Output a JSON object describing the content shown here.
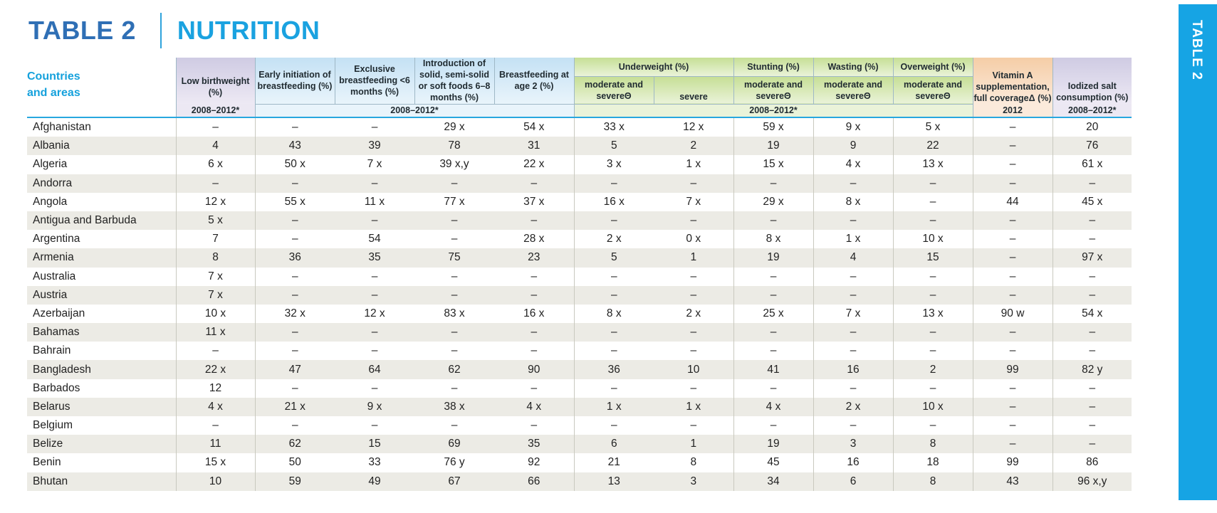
{
  "title": {
    "prefix": "TABLE 2",
    "name": "NUTRITION"
  },
  "side_tab": "TABLE 2",
  "header": {
    "countries_line1": "Countries",
    "countries_line2": "and areas",
    "low_birthweight": "Low birthweight (%)",
    "early_initiation": "Early initiation of breastfeeding (%)",
    "exclusive": "Exclusive breastfeeding <6 months (%)",
    "introduction": "Introduction of solid, semi-solid or soft foods 6–8 months (%)",
    "breastfeeding_age2": "Breastfeeding at age 2 (%)",
    "underweight": "Underweight (%)",
    "stunting": "Stunting (%)",
    "wasting": "Wasting (%)",
    "overweight": "Overweight (%)",
    "vitamin_a": "Vitamin A supplementation, full coverageΔ (%)",
    "iodized_salt": "Iodized salt consumption (%)",
    "moderate_severe": "moderate and severeΘ",
    "severe": "severe",
    "year_low_birthweight": "2008–2012*",
    "year_breastfeeding": "2008–2012*",
    "year_anthropometry": "2008–2012*",
    "year_vitamin_a": "2012",
    "year_iodized": "2008–2012*"
  },
  "rows": [
    [
      "Afghanistan",
      "–",
      "–",
      "–",
      "29 x",
      "54 x",
      "33 x",
      "12 x",
      "59 x",
      "9 x",
      "5 x",
      "–",
      "20"
    ],
    [
      "Albania",
      "4",
      "43",
      "39",
      "78",
      "31",
      "5",
      "2",
      "19",
      "9",
      "22",
      "–",
      "76"
    ],
    [
      "Algeria",
      "6 x",
      "50 x",
      "7 x",
      "39 x,y",
      "22 x",
      "3 x",
      "1 x",
      "15 x",
      "4 x",
      "13 x",
      "–",
      "61 x"
    ],
    [
      "Andorra",
      "–",
      "–",
      "–",
      "–",
      "–",
      "–",
      "–",
      "–",
      "–",
      "–",
      "–",
      "–"
    ],
    [
      "Angola",
      "12 x",
      "55 x",
      "11 x",
      "77 x",
      "37 x",
      "16 x",
      "7 x",
      "29 x",
      "8 x",
      "–",
      "44",
      "45 x"
    ],
    [
      "Antigua and Barbuda",
      "5 x",
      "–",
      "–",
      "–",
      "–",
      "–",
      "–",
      "–",
      "–",
      "–",
      "–",
      "–"
    ],
    [
      "Argentina",
      "7",
      "–",
      "54",
      "–",
      "28 x",
      "2 x",
      "0 x",
      "8 x",
      "1 x",
      "10 x",
      "–",
      "–"
    ],
    [
      "Armenia",
      "8",
      "36",
      "35",
      "75",
      "23",
      "5",
      "1",
      "19",
      "4",
      "15",
      "–",
      "97 x"
    ],
    [
      "Australia",
      "7 x",
      "–",
      "–",
      "–",
      "–",
      "–",
      "–",
      "–",
      "–",
      "–",
      "–",
      "–"
    ],
    [
      "Austria",
      "7 x",
      "–",
      "–",
      "–",
      "–",
      "–",
      "–",
      "–",
      "–",
      "–",
      "–",
      "–"
    ],
    [
      "Azerbaijan",
      "10 x",
      "32 x",
      "12 x",
      "83 x",
      "16 x",
      "8 x",
      "2 x",
      "25 x",
      "7 x",
      "13 x",
      "90 w",
      "54 x"
    ],
    [
      "Bahamas",
      "11 x",
      "–",
      "–",
      "–",
      "–",
      "–",
      "–",
      "–",
      "–",
      "–",
      "–",
      "–"
    ],
    [
      "Bahrain",
      "–",
      "–",
      "–",
      "–",
      "–",
      "–",
      "–",
      "–",
      "–",
      "–",
      "–",
      "–"
    ],
    [
      "Bangladesh",
      "22 x",
      "47",
      "64",
      "62",
      "90",
      "36",
      "10",
      "41",
      "16",
      "2",
      "99",
      "82 y"
    ],
    [
      "Barbados",
      "12",
      "–",
      "–",
      "–",
      "–",
      "–",
      "–",
      "–",
      "–",
      "–",
      "–",
      "–"
    ],
    [
      "Belarus",
      "4 x",
      "21 x",
      "9 x",
      "38 x",
      "4 x",
      "1 x",
      "1 x",
      "4 x",
      "2 x",
      "10 x",
      "–",
      "–"
    ],
    [
      "Belgium",
      "–",
      "–",
      "–",
      "–",
      "–",
      "–",
      "–",
      "–",
      "–",
      "–",
      "–",
      "–"
    ],
    [
      "Belize",
      "11",
      "62",
      "15",
      "69",
      "35",
      "6",
      "1",
      "19",
      "3",
      "8",
      "–",
      "–"
    ],
    [
      "Benin",
      "15 x",
      "50",
      "33",
      "76 y",
      "92",
      "21",
      "8",
      "45",
      "16",
      "18",
      "99",
      "86"
    ],
    [
      "Bhutan",
      "10",
      "59",
      "49",
      "67",
      "66",
      "13",
      "3",
      "34",
      "6",
      "8",
      "43",
      "96 x,y"
    ]
  ]
}
